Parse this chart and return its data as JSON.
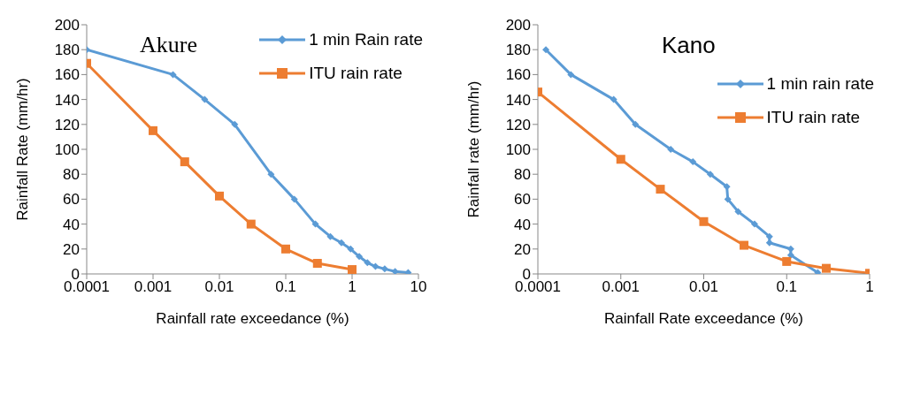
{
  "chart_data": [
    {
      "type": "line",
      "title": "Akure",
      "xlabel": "Rainfall rate exceedance (%)",
      "ylabel": "Rainfall Rate (mm/hr)",
      "log": "x",
      "xlim": [
        0.0001,
        10
      ],
      "xticks": [
        0.0001,
        0.001,
        0.01,
        0.1,
        1,
        10
      ],
      "ylim": [
        0,
        200
      ],
      "yticks": [
        0,
        20,
        40,
        60,
        80,
        100,
        120,
        140,
        160,
        180,
        200
      ],
      "legend": "top right",
      "series": [
        {
          "name": "1 min Rain rate",
          "color": "#5b9bd5",
          "marker": "diamond",
          "x": [
            0.0001,
            0.002,
            0.006,
            0.017,
            0.06,
            0.135,
            0.28,
            0.47,
            0.69,
            0.95,
            1.28,
            1.7,
            2.25,
            3.1,
            4.45,
            7
          ],
          "values": [
            180,
            160,
            140,
            120,
            80,
            60,
            40,
            30,
            25,
            20,
            14,
            9,
            6,
            4,
            2,
            1
          ]
        },
        {
          "name": "ITU rain rate",
          "color": "#ed7d31",
          "marker": "square",
          "x": [
            0.0001,
            0.001,
            0.003,
            0.01,
            0.03,
            0.1,
            0.3,
            1
          ],
          "values": [
            169,
            115,
            90,
            62.5,
            40,
            20,
            8.5,
            3.5
          ]
        }
      ]
    },
    {
      "type": "line",
      "title": "Kano",
      "xlabel": "Rainfall Rate exceedance (%)",
      "ylabel": "Rainfall rate (mm/hr)",
      "log": "x",
      "xlim": [
        0.0001,
        1
      ],
      "xticks": [
        0.0001,
        0.001,
        0.01,
        0.1,
        1
      ],
      "ylim": [
        0,
        200
      ],
      "yticks": [
        0,
        20,
        40,
        60,
        80,
        100,
        120,
        140,
        160,
        180,
        200
      ],
      "legend": "top right",
      "series": [
        {
          "name": "1 min rain rate",
          "color": "#5b9bd5",
          "marker": "diamond",
          "x": [
            0.000125,
            0.00025,
            0.00082,
            0.0015,
            0.004,
            0.0074,
            0.012,
            0.019,
            0.0195,
            0.026,
            0.041,
            0.062,
            0.062,
            0.112,
            0.112,
            0.237
          ],
          "values": [
            180,
            160,
            140,
            120,
            100,
            90,
            80,
            70,
            60,
            50,
            40,
            30,
            25,
            20,
            15,
            1
          ]
        },
        {
          "name": "ITU rain rate",
          "color": "#ed7d31",
          "marker": "square",
          "x": [
            0.0001,
            0.001,
            0.003,
            0.01,
            0.0306,
            0.1,
            0.3,
            1
          ],
          "values": [
            146,
            92,
            68,
            42,
            23,
            10,
            4.5,
            0.5
          ]
        }
      ]
    }
  ]
}
